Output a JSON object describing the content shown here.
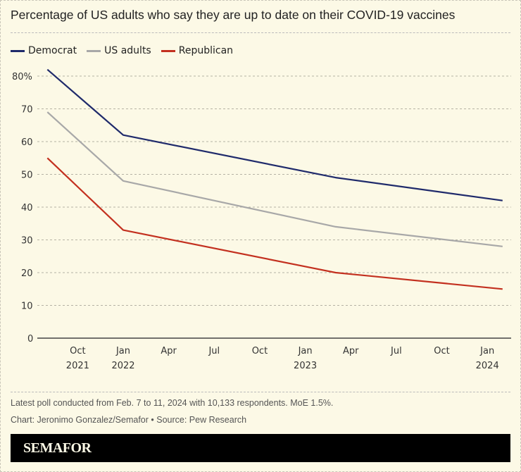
{
  "chart_data": {
    "type": "line",
    "title": "Percentage of US adults who say they are up to date on their COVID-19 vaccines",
    "x": [
      "2021-08",
      "2022-01",
      "2023-03",
      "2024-02"
    ],
    "series": [
      {
        "name": "Democrat",
        "values": [
          82,
          62,
          49,
          42
        ],
        "color": "#1f2a6b"
      },
      {
        "name": "US adults",
        "values": [
          69,
          48,
          34,
          28
        ],
        "color": "#a8a8a8"
      },
      {
        "name": "Republican",
        "values": [
          55,
          33,
          20,
          15
        ],
        "color": "#c3301f"
      }
    ],
    "ylim": [
      0,
      80
    ],
    "yticks": [
      0,
      10,
      20,
      30,
      40,
      50,
      60,
      70,
      80
    ],
    "ytick_labels": [
      "0",
      "10",
      "20",
      "30",
      "40",
      "50",
      "60",
      "70",
      "80%"
    ],
    "xticks": [
      {
        "date": "2021-10",
        "label": "Oct",
        "year": "2021"
      },
      {
        "date": "2022-01",
        "label": "Jan",
        "year": "2022"
      },
      {
        "date": "2022-04",
        "label": "Apr",
        "year": ""
      },
      {
        "date": "2022-07",
        "label": "Jul",
        "year": ""
      },
      {
        "date": "2022-10",
        "label": "Oct",
        "year": ""
      },
      {
        "date": "2023-01",
        "label": "Jan",
        "year": "2023"
      },
      {
        "date": "2023-04",
        "label": "Apr",
        "year": ""
      },
      {
        "date": "2023-07",
        "label": "Jul",
        "year": ""
      },
      {
        "date": "2023-10",
        "label": "Oct",
        "year": ""
      },
      {
        "date": "2024-01",
        "label": "Jan",
        "year": "2024"
      }
    ],
    "grid": true,
    "legend": "top-left"
  },
  "notes": {
    "poll": "Latest poll conducted from Feb. 7 to 11, 2024 with 10,133 respondents. MoE 1.5%.",
    "credit": "Chart: Jeronimo Gonzalez/Semafor • Source: Pew Research"
  },
  "brand": "SEMAFOR"
}
